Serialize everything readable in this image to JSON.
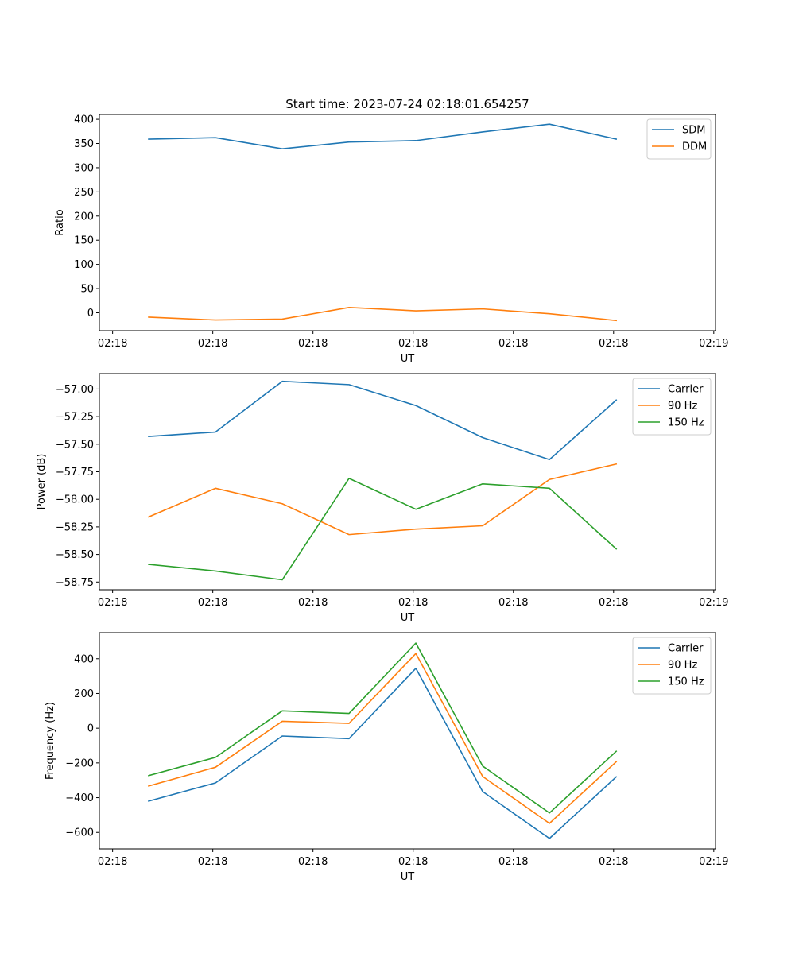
{
  "title": "Start time: 2023-07-24 02:18:01.654257",
  "colors": {
    "blue": "#1f77b4",
    "orange": "#ff7f0e",
    "green": "#2ca02c"
  },
  "chart_data": [
    {
      "type": "line",
      "title": "Start time: 2023-07-24 02:18:01.654257",
      "xlabel": "UT",
      "ylabel": "Ratio",
      "x": [
        1,
        2,
        3,
        4,
        5,
        6,
        7,
        8
      ],
      "xlim": [
        0.262,
        9.486
      ],
      "xticks": [
        0.46,
        1.96,
        3.46,
        4.96,
        6.46,
        7.96,
        9.46
      ],
      "xticklabels": [
        "02:18",
        "02:18",
        "02:18",
        "02:18",
        "02:18",
        "02:18",
        "02:19"
      ],
      "ylim": [
        -37,
        410
      ],
      "yticks": [
        0,
        50,
        100,
        150,
        200,
        250,
        300,
        350,
        400
      ],
      "yticklabels": [
        "0",
        "50",
        "100",
        "150",
        "200",
        "250",
        "300",
        "350",
        "400"
      ],
      "legend": "top-right",
      "series": [
        {
          "name": "SDM",
          "color": "#1f77b4",
          "values": [
            359,
            362,
            339,
            353,
            356,
            374,
            390,
            359
          ]
        },
        {
          "name": "DDM",
          "color": "#ff7f0e",
          "values": [
            -9,
            -15,
            -13,
            11,
            4,
            8,
            -2,
            -16
          ]
        }
      ]
    },
    {
      "type": "line",
      "title": "",
      "xlabel": "UT",
      "ylabel": "Power (dB)",
      "x": [
        1,
        2,
        3,
        4,
        5,
        6,
        7,
        8
      ],
      "xlim": [
        0.262,
        9.486
      ],
      "xticks": [
        0.46,
        1.96,
        3.46,
        4.96,
        6.46,
        7.96,
        9.46
      ],
      "xticklabels": [
        "02:18",
        "02:18",
        "02:18",
        "02:18",
        "02:18",
        "02:18",
        "02:19"
      ],
      "ylim": [
        -58.82,
        -56.86
      ],
      "yticks": [
        -58.75,
        -58.5,
        -58.25,
        -58.0,
        -57.75,
        -57.5,
        -57.25,
        -57.0
      ],
      "yticklabels": [
        "−58.75",
        "−58.50",
        "−58.25",
        "−58.00",
        "−57.75",
        "−57.50",
        "−57.25",
        "−57.00"
      ],
      "legend": "top-right",
      "series": [
        {
          "name": "Carrier",
          "color": "#1f77b4",
          "values": [
            -57.43,
            -57.39,
            -56.93,
            -56.96,
            -57.15,
            -57.44,
            -57.64,
            -57.1
          ]
        },
        {
          "name": "90 Hz",
          "color": "#ff7f0e",
          "values": [
            -58.16,
            -57.9,
            -58.04,
            -58.32,
            -58.27,
            -58.24,
            -57.82,
            -57.68
          ]
        },
        {
          "name": "150 Hz",
          "color": "#2ca02c",
          "values": [
            -58.59,
            -58.65,
            -58.73,
            -57.81,
            -58.09,
            -57.86,
            -57.9,
            -58.45
          ]
        }
      ]
    },
    {
      "type": "line",
      "title": "",
      "xlabel": "UT",
      "ylabel": "Frequency (Hz)",
      "x": [
        1,
        2,
        3,
        4,
        5,
        6,
        7,
        8
      ],
      "xlim": [
        0.262,
        9.486
      ],
      "xticks": [
        0.46,
        1.96,
        3.46,
        4.96,
        6.46,
        7.96,
        9.46
      ],
      "xticklabels": [
        "02:18",
        "02:18",
        "02:18",
        "02:18",
        "02:18",
        "02:18",
        "02:19"
      ],
      "ylim": [
        -695,
        550
      ],
      "yticks": [
        -600,
        -400,
        -200,
        0,
        200,
        400
      ],
      "yticklabels": [
        "−600",
        "−400",
        "−200",
        "0",
        "200",
        "400"
      ],
      "legend": "top-right",
      "series": [
        {
          "name": "Carrier",
          "color": "#1f77b4",
          "values": [
            -420,
            -315,
            -45,
            -60,
            345,
            -365,
            -635,
            -280
          ]
        },
        {
          "name": "90 Hz",
          "color": "#ff7f0e",
          "values": [
            -333,
            -225,
            40,
            28,
            430,
            -278,
            -548,
            -193
          ]
        },
        {
          "name": "150 Hz",
          "color": "#2ca02c",
          "values": [
            -273,
            -168,
            100,
            85,
            490,
            -218,
            -488,
            -133
          ]
        }
      ]
    }
  ]
}
